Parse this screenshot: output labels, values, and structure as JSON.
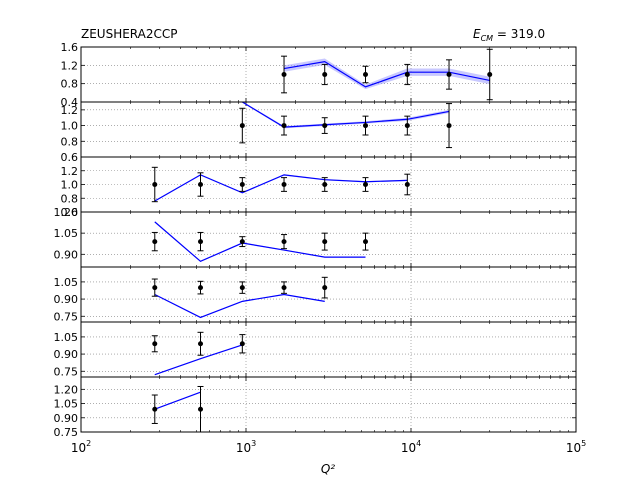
{
  "header": {
    "dataset": "ZEUSHERA2CCP",
    "energy_label": "E",
    "energy_sub": "CM",
    "energy_value": " = 319.0"
  },
  "colors": {
    "theory": "#0000ff",
    "band": "#9a9aff",
    "data": "#000000",
    "grid": "#7f7f7f"
  },
  "chart_data": {
    "type": "line",
    "xscale": "log",
    "xlim": [
      100,
      100000
    ],
    "xlabel": "Q²",
    "x_ticks": [
      {
        "v": 100,
        "m": "10",
        "e": "2"
      },
      {
        "v": 1000,
        "m": "10",
        "e": "3"
      },
      {
        "v": 10000,
        "m": "10",
        "e": "4"
      },
      {
        "v": 100000,
        "m": "10",
        "e": "5"
      }
    ],
    "grid": true,
    "panels": [
      {
        "ylim": [
          0.4,
          1.6
        ],
        "yticks": [
          "0.4",
          "0.8",
          "1.2",
          "1.6"
        ],
        "data": [
          {
            "x": 1700,
            "y": 1.0,
            "err": 0.4
          },
          {
            "x": 3000,
            "y": 1.0,
            "err": 0.22
          },
          {
            "x": 5300,
            "y": 1.0,
            "err": 0.18
          },
          {
            "x": 9500,
            "y": 1.0,
            "err": 0.22
          },
          {
            "x": 17000,
            "y": 1.0,
            "err": 0.32
          },
          {
            "x": 30000,
            "y": 1.0,
            "err": 0.55
          }
        ],
        "theory": [
          {
            "x": 1700,
            "y": 1.13,
            "band": 0.07
          },
          {
            "x": 3000,
            "y": 1.28,
            "band": 0.07
          },
          {
            "x": 5300,
            "y": 0.73,
            "band": 0.05
          },
          {
            "x": 9500,
            "y": 1.05,
            "band": 0.08
          },
          {
            "x": 17000,
            "y": 1.05,
            "band": 0.08
          },
          {
            "x": 30000,
            "y": 0.87,
            "band": 0.08
          }
        ]
      },
      {
        "ylim": [
          0.6,
          1.3
        ],
        "yticks": [
          "0.6",
          "0.8",
          "1.0",
          "1.2"
        ],
        "data": [
          {
            "x": 950,
            "y": 1.0,
            "err": 0.22
          },
          {
            "x": 1700,
            "y": 1.0,
            "err": 0.12
          },
          {
            "x": 3000,
            "y": 1.0,
            "err": 0.1
          },
          {
            "x": 5300,
            "y": 1.0,
            "err": 0.12
          },
          {
            "x": 9500,
            "y": 1.0,
            "err": 0.12
          },
          {
            "x": 17000,
            "y": 1.0,
            "err": 0.28
          }
        ],
        "theory": [
          {
            "x": 950,
            "y": 1.3,
            "band": 0.01
          },
          {
            "x": 1700,
            "y": 0.98,
            "band": 0.015
          },
          {
            "x": 3000,
            "y": 1.01,
            "band": 0.015
          },
          {
            "x": 5300,
            "y": 1.04,
            "band": 0.015
          },
          {
            "x": 9500,
            "y": 1.08,
            "band": 0.02
          },
          {
            "x": 17000,
            "y": 1.18,
            "band": 0.02
          }
        ]
      },
      {
        "ylim": [
          0.6,
          1.4
        ],
        "yticks": [
          "0.6",
          "0.8",
          "1.0",
          "1.2"
        ],
        "data": [
          {
            "x": 280,
            "y": 1.0,
            "err": 0.25
          },
          {
            "x": 530,
            "y": 1.0,
            "err": 0.17
          },
          {
            "x": 950,
            "y": 1.0,
            "err": 0.1
          },
          {
            "x": 1700,
            "y": 1.0,
            "err": 0.1
          },
          {
            "x": 3000,
            "y": 1.0,
            "err": 0.1
          },
          {
            "x": 5300,
            "y": 1.0,
            "err": 0.1
          },
          {
            "x": 9500,
            "y": 1.0,
            "err": 0.15
          }
        ],
        "theory": [
          {
            "x": 280,
            "y": 0.76,
            "band": 0.01
          },
          {
            "x": 530,
            "y": 1.14,
            "band": 0.01
          },
          {
            "x": 950,
            "y": 0.88,
            "band": 0.01
          },
          {
            "x": 1700,
            "y": 1.14,
            "band": 0.01
          },
          {
            "x": 3000,
            "y": 1.07,
            "band": 0.01
          },
          {
            "x": 5300,
            "y": 1.04,
            "band": 0.01
          },
          {
            "x": 9500,
            "y": 1.06,
            "band": 0.01
          }
        ]
      },
      {
        "ylim": [
          0.81,
          1.2
        ],
        "yticks": [
          "0.90",
          "1.05",
          "1.20"
        ],
        "data": [
          {
            "x": 280,
            "y": 0.99,
            "err": 0.065
          },
          {
            "x": 530,
            "y": 0.99,
            "err": 0.065
          },
          {
            "x": 950,
            "y": 0.99,
            "err": 0.035
          },
          {
            "x": 1700,
            "y": 0.99,
            "err": 0.05
          },
          {
            "x": 3000,
            "y": 0.99,
            "err": 0.06
          },
          {
            "x": 5300,
            "y": 0.99,
            "err": 0.06
          }
        ],
        "theory": [
          {
            "x": 280,
            "y": 1.13,
            "band": 0.004
          },
          {
            "x": 530,
            "y": 0.85,
            "band": 0.004
          },
          {
            "x": 950,
            "y": 0.98,
            "band": 0.004
          },
          {
            "x": 1700,
            "y": 0.93,
            "band": 0.004
          },
          {
            "x": 3000,
            "y": 0.88,
            "band": 0.004
          },
          {
            "x": 5300,
            "y": 0.88,
            "band": 0.004
          }
        ]
      },
      {
        "ylim": [
          0.7,
          1.18
        ],
        "yticks": [
          "0.75",
          "0.90",
          "1.05"
        ],
        "data": [
          {
            "x": 280,
            "y": 1.0,
            "err": 0.075
          },
          {
            "x": 530,
            "y": 1.0,
            "err": 0.055
          },
          {
            "x": 950,
            "y": 1.0,
            "err": 0.05
          },
          {
            "x": 1700,
            "y": 1.0,
            "err": 0.05
          },
          {
            "x": 3000,
            "y": 1.0,
            "err": 0.09
          }
        ],
        "theory": [
          {
            "x": 280,
            "y": 0.94,
            "band": 0.004
          },
          {
            "x": 530,
            "y": 0.74,
            "band": 0.004
          },
          {
            "x": 950,
            "y": 0.88,
            "band": 0.004
          },
          {
            "x": 1700,
            "y": 0.94,
            "band": 0.004
          },
          {
            "x": 3000,
            "y": 0.88,
            "band": 0.004
          }
        ]
      },
      {
        "ylim": [
          0.7,
          1.18
        ],
        "yticks": [
          "0.75",
          "0.90",
          "1.05"
        ],
        "data": [
          {
            "x": 280,
            "y": 0.99,
            "err": 0.07
          },
          {
            "x": 530,
            "y": 0.99,
            "err": 0.1
          },
          {
            "x": 950,
            "y": 0.99,
            "err": 0.08
          }
        ],
        "theory": [
          {
            "x": 280,
            "y": 0.72,
            "band": 0.004
          },
          {
            "x": 530,
            "y": 0.86,
            "band": 0.004
          },
          {
            "x": 950,
            "y": 0.98,
            "band": 0.004
          }
        ]
      },
      {
        "ylim": [
          0.75,
          1.33
        ],
        "yticks": [
          "0.75",
          "0.90",
          "1.05",
          "1.20"
        ],
        "data": [
          {
            "x": 280,
            "y": 0.99,
            "err": 0.15
          },
          {
            "x": 530,
            "y": 0.99,
            "err": 0.24
          }
        ],
        "theory": [
          {
            "x": 280,
            "y": 0.99,
            "band": 0.004
          },
          {
            "x": 530,
            "y": 1.17,
            "band": 0.004
          }
        ]
      }
    ]
  }
}
